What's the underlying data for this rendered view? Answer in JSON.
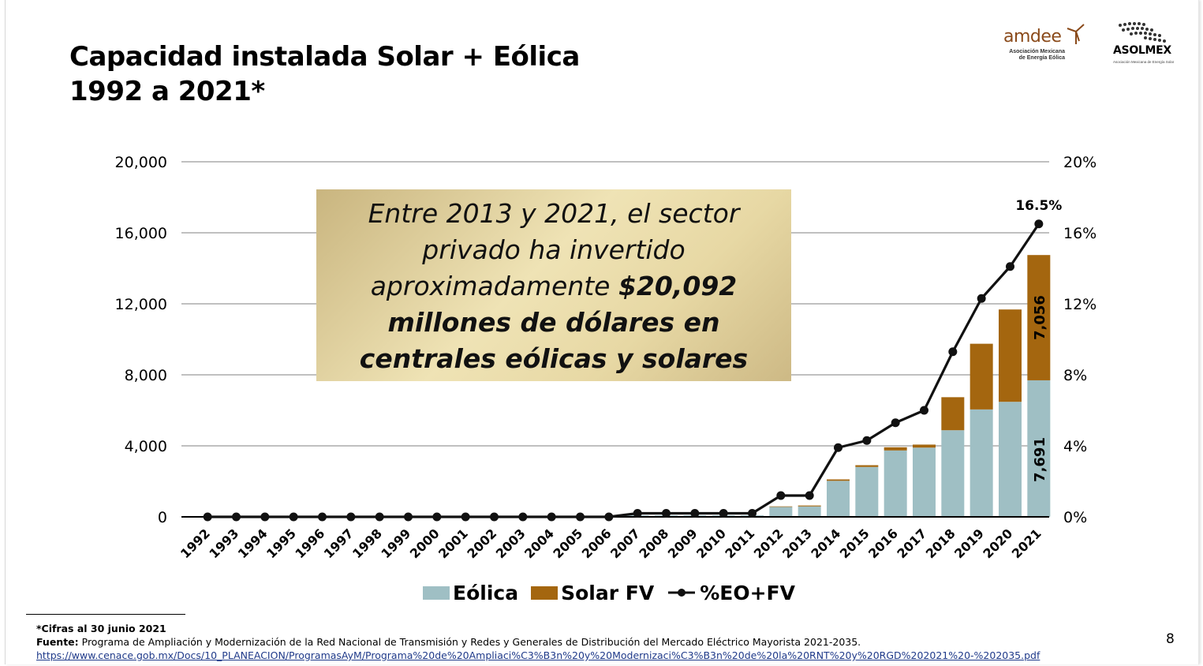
{
  "slide": {
    "title_line1": "Capacidad instalada Solar + Eólica",
    "title_line2": "1992 a 2021*",
    "page_number": "8"
  },
  "logos": {
    "amdee": {
      "name": "amdee",
      "subtitle": "Asociación Mexicana de Energía Eólica"
    },
    "asolmex": {
      "name": "ASOLMEX",
      "subtitle": "Asociación Mexicana de Energía Solar"
    }
  },
  "callout": {
    "text_parts": [
      "Entre 2013 y 2021, el sector privado ha invertido aproximadamente ",
      "$20,092 millones de dólares en centrales eólicas y solares"
    ]
  },
  "footnotes": {
    "cifras": "*Cifras al 30 junio 2021",
    "fuente_label": "Fuente:",
    "fuente_text": " Programa de Ampliación y Modernización de la Red Nacional de Transmisión y Redes y Generales de Distribución del Mercado Eléctrico Mayorista 2021-2035.",
    "link": "https://www.cenace.gob.mx/Docs/10_PLANEACION/ProgramasAyM/Programa%20de%20Ampliaci%C3%B3n%20y%20Modernizaci%C3%B3n%20de%20la%20RNT%20y%20RGD%202021%20-%202035.pdf"
  },
  "colors": {
    "eolica": "#9fbfc4",
    "solar": "#a4660f",
    "line": "#111111",
    "grid": "#9a9a9a"
  },
  "chart_data": {
    "type": "bar",
    "stacked": true,
    "categories": [
      "1992",
      "1993",
      "1994",
      "1995",
      "1996",
      "1997",
      "1998",
      "1999",
      "2000",
      "2001",
      "2002",
      "2003",
      "2004",
      "2005",
      "2006",
      "2007",
      "2008",
      "2009",
      "2010",
      "2011",
      "2012",
      "2013",
      "2014",
      "2015",
      "2016",
      "2017",
      "2018",
      "2019",
      "2020",
      "2021"
    ],
    "series": [
      {
        "name": "Eólica",
        "axis": "left",
        "values": [
          0,
          0,
          0,
          0,
          0,
          0,
          0,
          0,
          0,
          0,
          0,
          0,
          0,
          0,
          0,
          85,
          85,
          85,
          85,
          86,
          560,
          590,
          2030,
          2810,
          3740,
          3900,
          4880,
          6050,
          6480,
          7691
        ]
      },
      {
        "name": "Solar FV",
        "axis": "left",
        "values": [
          0,
          0,
          0,
          0,
          0,
          0,
          0,
          0,
          0,
          0,
          0,
          0,
          0,
          0,
          0,
          0,
          0,
          0,
          0,
          0,
          30,
          50,
          80,
          100,
          180,
          170,
          1860,
          3700,
          5200,
          7056
        ]
      },
      {
        "name": "%EO+FV",
        "type": "line",
        "axis": "right",
        "values": [
          0,
          0,
          0,
          0,
          0,
          0,
          0,
          0,
          0,
          0,
          0,
          0,
          0,
          0,
          0,
          0.2,
          0.2,
          0.2,
          0.2,
          0.2,
          1.2,
          1.2,
          3.9,
          4.3,
          5.3,
          6.0,
          9.3,
          12.3,
          14.1,
          16.5
        ]
      }
    ],
    "data_labels": [
      {
        "series": "Eólica",
        "category": "2021",
        "text": "7,691"
      },
      {
        "series": "Solar FV",
        "category": "2021",
        "text": "7,056"
      },
      {
        "series": "%EO+FV",
        "category": "2021",
        "text": "16.5%"
      }
    ],
    "y_left": {
      "ticks": [
        0,
        4000,
        8000,
        12000,
        16000,
        20000
      ],
      "tick_labels": [
        "0",
        "4,000",
        "8,000",
        "12,000",
        "16,000",
        "20,000"
      ],
      "ylim": [
        0,
        20000
      ]
    },
    "y_right": {
      "ticks": [
        0,
        4,
        8,
        12,
        16,
        20
      ],
      "tick_labels": [
        "0%",
        "4%",
        "8%",
        "12%",
        "16%",
        "20%"
      ],
      "ylim": [
        0,
        20
      ]
    },
    "grid": true,
    "legend": {
      "position": "bottom",
      "entries": [
        "Eólica",
        "Solar FV",
        "%EO+FV"
      ]
    }
  }
}
